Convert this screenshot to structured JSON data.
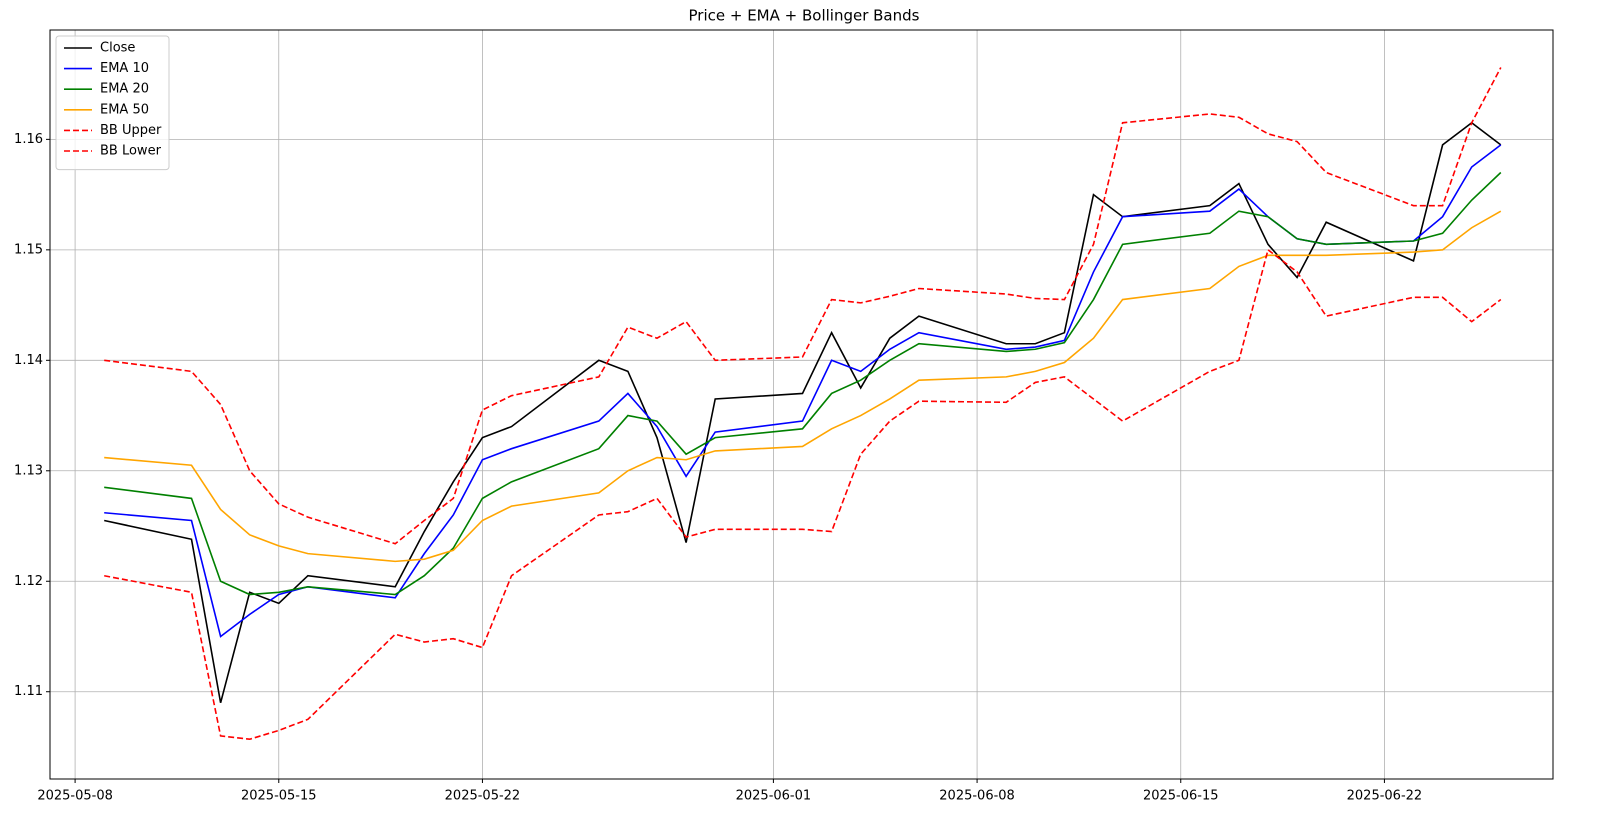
{
  "chart_data": {
    "type": "line",
    "title": "Price + EMA + Bollinger Bands",
    "x": [
      "2025-05-09",
      "2025-05-12",
      "2025-05-13",
      "2025-05-14",
      "2025-05-15",
      "2025-05-16",
      "2025-05-19",
      "2025-05-20",
      "2025-05-21",
      "2025-05-22",
      "2025-05-23",
      "2025-05-26",
      "2025-05-27",
      "2025-05-28",
      "2025-05-29",
      "2025-05-30",
      "2025-06-02",
      "2025-06-03",
      "2025-06-04",
      "2025-06-05",
      "2025-06-06",
      "2025-06-09",
      "2025-06-10",
      "2025-06-11",
      "2025-06-12",
      "2025-06-13",
      "2025-06-16",
      "2025-06-17",
      "2025-06-18",
      "2025-06-19",
      "2025-06-20",
      "2025-06-23",
      "2025-06-24",
      "2025-06-25",
      "2025-06-26"
    ],
    "series": [
      {
        "name": "Close",
        "color": "#000000",
        "linestyle": "solid",
        "values": [
          1.1255,
          1.1238,
          1.109,
          1.119,
          1.118,
          1.1205,
          1.1195,
          1.1245,
          1.129,
          1.133,
          1.134,
          1.14,
          1.139,
          1.133,
          1.1235,
          1.1365,
          1.137,
          1.1425,
          1.1375,
          1.142,
          1.144,
          1.1415,
          1.1415,
          1.1425,
          1.155,
          1.153,
          1.154,
          1.156,
          1.1505,
          1.1475,
          1.1525,
          1.149,
          1.1595,
          1.1615,
          1.1595
        ]
      },
      {
        "name": "EMA 10",
        "color": "#0000ff",
        "linestyle": "solid",
        "values": [
          1.1262,
          1.1255,
          1.115,
          1.117,
          1.1188,
          1.1195,
          1.1185,
          1.1225,
          1.126,
          1.131,
          1.132,
          1.1345,
          1.137,
          1.134,
          1.1295,
          1.1335,
          1.1345,
          1.14,
          1.139,
          1.141,
          1.1425,
          1.141,
          1.1412,
          1.1418,
          1.148,
          1.153,
          1.1535,
          1.1555,
          1.153,
          1.151,
          1.1505,
          1.1508,
          1.153,
          1.1575,
          1.1595
        ]
      },
      {
        "name": "EMA 20",
        "color": "#008000",
        "linestyle": "solid",
        "values": [
          1.1285,
          1.1275,
          1.12,
          1.1188,
          1.119,
          1.1195,
          1.1188,
          1.1205,
          1.123,
          1.1275,
          1.129,
          1.132,
          1.135,
          1.1345,
          1.1315,
          1.133,
          1.1338,
          1.137,
          1.1382,
          1.14,
          1.1415,
          1.1408,
          1.141,
          1.1416,
          1.1455,
          1.1505,
          1.1515,
          1.1535,
          1.153,
          1.151,
          1.1505,
          1.1508,
          1.1515,
          1.1545,
          1.157
        ]
      },
      {
        "name": "EMA 50",
        "color": "#ffa500",
        "linestyle": "solid",
        "values": [
          1.1312,
          1.1305,
          1.1265,
          1.1242,
          1.1232,
          1.1225,
          1.1218,
          1.122,
          1.1228,
          1.1255,
          1.1268,
          1.128,
          1.13,
          1.1312,
          1.131,
          1.1318,
          1.1322,
          1.1338,
          1.135,
          1.1365,
          1.1382,
          1.1385,
          1.139,
          1.1398,
          1.142,
          1.1455,
          1.1465,
          1.1485,
          1.1495,
          1.1495,
          1.1495,
          1.1498,
          1.15,
          1.152,
          1.1535
        ]
      },
      {
        "name": "BB Upper",
        "color": "#ff0000",
        "linestyle": "dashed",
        "values": [
          1.14,
          1.139,
          1.136,
          1.13,
          1.127,
          1.1258,
          1.1234,
          1.1255,
          1.1275,
          1.1355,
          1.1368,
          1.1385,
          1.143,
          1.142,
          1.1435,
          1.14,
          1.1403,
          1.1455,
          1.1452,
          1.1458,
          1.1465,
          1.146,
          1.1456,
          1.1455,
          1.1505,
          1.1615,
          1.1623,
          1.162,
          1.1605,
          1.1598,
          1.157,
          1.154,
          1.154,
          1.1615,
          1.1665
        ]
      },
      {
        "name": "BB Lower",
        "color": "#ff0000",
        "linestyle": "dashed",
        "values": [
          1.1205,
          1.119,
          1.106,
          1.1057,
          1.1065,
          1.1075,
          1.1152,
          1.1145,
          1.1148,
          1.114,
          1.1205,
          1.126,
          1.1263,
          1.1275,
          1.124,
          1.1247,
          1.1247,
          1.1245,
          1.1315,
          1.1345,
          1.1363,
          1.1362,
          1.138,
          1.1385,
          1.1365,
          1.1345,
          1.139,
          1.14,
          1.15,
          1.148,
          1.144,
          1.1457,
          1.1457,
          1.1435,
          1.1455
        ]
      }
    ],
    "xlim": [
      "2025-05-07",
      "2025-06-28"
    ],
    "xticks": [
      "2025-05-08",
      "2025-05-15",
      "2025-05-22",
      "2025-06-01",
      "2025-06-08",
      "2025-06-15",
      "2025-06-22"
    ],
    "ylim": [
      1.1021,
      1.1699
    ],
    "yticks": [
      1.11,
      1.12,
      1.13,
      1.14,
      1.15,
      1.16
    ],
    "grid": true,
    "legend": "upper left"
  }
}
